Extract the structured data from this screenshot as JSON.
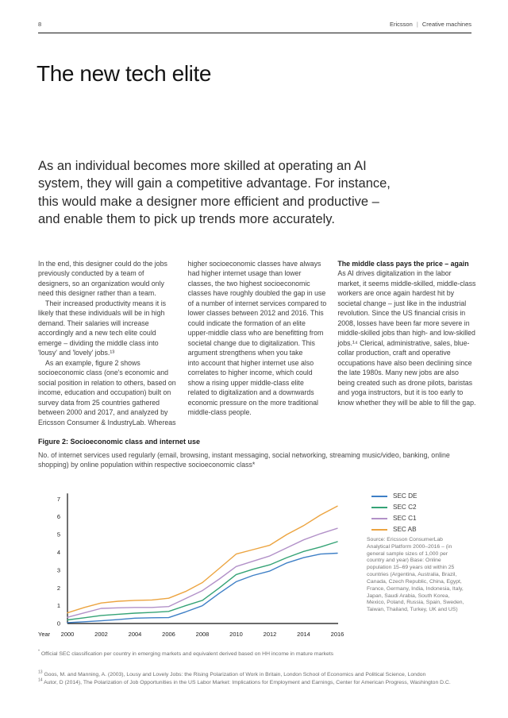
{
  "header": {
    "page_number": "8",
    "brand": "Ericsson",
    "divider": "|",
    "doc_title": "Creative machines"
  },
  "title": "The new tech elite",
  "intro": "As an individual becomes more skilled at operating an AI system, they will gain a competitive advantage. For instance, this would make a designer more efficient and productive – and enable them to pick up trends more accurately.",
  "columns": [
    {
      "paragraphs": [
        "In the end, this designer could do the jobs previously conducted by a team of designers, so an organization would only need this designer rather than a team.",
        "Their increased productivity means it is likely that these individuals will be in high demand. Their salaries will increase accordingly and a new tech elite could emerge – dividing the middle class into 'lousy' and 'lovely' jobs.¹³",
        "As an example, figure 2 shows socioeconomic class (one's economic and social position in relation to others, based on income, education and occupation) built on survey data from 25 countries gathered between 2000 and 2017, and analyzed by Ericsson Consumer & IndustryLab. Whereas"
      ]
    },
    {
      "paragraphs": [
        "higher socioeconomic classes have always had higher internet usage than lower classes, the two highest socioeconomic classes have roughly doubled the gap in use of a number of internet services compared to lower classes between 2012 and 2016. This could indicate the formation of an elite upper-middle class who are benefitting from societal change due to digitalization. This argument strengthens when you take",
        "into account that higher internet use also correlates to higher income, which could show a rising upper middle-class elite related to digitalization and a downwards economic pressure on the more traditional middle-class people."
      ]
    },
    {
      "heading": "The middle class pays the price – again",
      "paragraphs": [
        "As AI drives digitalization in the labor market, it seems middle-skilled, middle-class workers are once again hardest hit by societal change – just like in the industrial revolution. Since the US financial crisis in 2008, losses have been far more severe in middle-skilled jobs than high- and low-skilled jobs.¹⁴ Clerical, administrative, sales, blue-collar production, craft and operative occupations have also been declining since the late 1980s. Many new jobs are also being created such as drone pilots, baristas and yoga instructors, but it is too early to know whether they will be able to fill the gap."
      ]
    }
  ],
  "figure": {
    "caption": "Figure 2: Socioeconomic class and internet use",
    "subtitle": "No. of internet services used regularly (email, browsing, instant messaging, social networking, streaming music/video, banking, online shopping) by online population within respective socioeconomic class*",
    "source": "Source: Ericsson ConsumerLab Analytical Platform 2000–2016 – (in general sample sizes of 1,000 per country and year) Base: Online population 15–69 years old within 25 countries (Argentina, Australia, Brazil, Canada, Czech Republic, China, Egypt, France, Germany, India, Indonesia, Italy, Japan, Saudi Arabia, South Korea, Mexico, Poland, Russia, Spain, Sweden, Taiwan, Thailand, Turkey, UK and US)"
  },
  "chart_data": {
    "type": "line",
    "title": "Figure 2: Socioeconomic class and internet use",
    "xlabel": "Year",
    "ylabel": "",
    "x": [
      2000,
      2001,
      2002,
      2003,
      2004,
      2005,
      2006,
      2007,
      2008,
      2009,
      2010,
      2011,
      2012,
      2013,
      2014,
      2015,
      2016
    ],
    "x_ticks": [
      2000,
      2002,
      2004,
      2006,
      2008,
      2010,
      2012,
      2014,
      2016
    ],
    "ylim": [
      0,
      7
    ],
    "y_ticks": [
      0,
      1,
      2,
      3,
      4,
      5,
      6,
      7
    ],
    "grid": false,
    "legend_position": "right-top",
    "series": [
      {
        "name": "SEC DE",
        "color": "#3e7fc6",
        "values": [
          0.05,
          0.1,
          0.15,
          0.22,
          0.3,
          0.32,
          0.33,
          0.65,
          1.0,
          1.7,
          2.35,
          2.7,
          2.95,
          3.4,
          3.7,
          3.9,
          3.95
        ]
      },
      {
        "name": "SEC C2",
        "color": "#35a376",
        "values": [
          0.2,
          0.32,
          0.45,
          0.52,
          0.58,
          0.62,
          0.68,
          1.0,
          1.3,
          2.0,
          2.75,
          3.05,
          3.3,
          3.7,
          4.05,
          4.3,
          4.6
        ]
      },
      {
        "name": "SEC C1",
        "color": "#b291c8",
        "values": [
          0.35,
          0.6,
          0.85,
          0.88,
          0.9,
          0.9,
          0.95,
          1.4,
          1.85,
          2.5,
          3.2,
          3.5,
          3.8,
          4.25,
          4.7,
          5.05,
          5.35
        ]
      },
      {
        "name": "SEC AB",
        "color": "#eca440",
        "values": [
          0.6,
          0.9,
          1.15,
          1.25,
          1.3,
          1.32,
          1.42,
          1.8,
          2.3,
          3.1,
          3.9,
          4.15,
          4.4,
          5.0,
          5.5,
          6.1,
          6.6
        ]
      }
    ]
  },
  "footnotes": [
    {
      "marker": "*",
      "text": " Official SEC classification per country in emerging markets and equivalent derived based on HH income in mature markets"
    },
    {
      "marker": "13",
      "text": " Goos, M. and Manning, A. (2003), Lousy and Lovely Jobs: the Rising Polarization of Work in Britain, London School of Economics and Political Science, London"
    },
    {
      "marker": "14",
      "text": " Autor, D (2014), The Polarization of Job Opportunities in the US Labor Market: Implications for Employment and Earnings, Center for American Progress, Washington D.C."
    }
  ]
}
